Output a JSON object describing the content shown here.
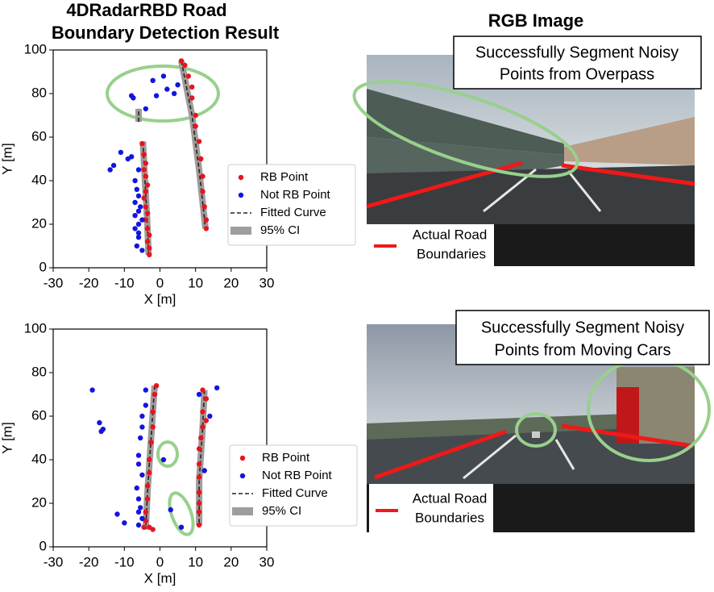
{
  "title": [
    "4DRadarRBD Road",
    "Boundary Detection Result"
  ],
  "image_title": "RGB Image",
  "chart_data": [
    {
      "type": "scatter",
      "xlabel": "X [m]",
      "ylabel": "Y [m]",
      "xlim": [
        -30,
        30
      ],
      "xticks": [
        -30,
        -20,
        -10,
        0,
        10,
        20,
        30
      ],
      "ylim": [
        0,
        100
      ],
      "yticks": [
        0,
        20,
        40,
        60,
        80,
        100
      ],
      "grid": false,
      "legend": "right",
      "series": [
        {
          "name": "RB Point",
          "color": "#e8141c",
          "style": "points",
          "x": [
            -5,
            -4.5,
            -4,
            -4.5,
            -4,
            -3.5,
            -4,
            -4.5,
            -4,
            -3.5,
            -4,
            -3.5,
            -3,
            -3.5,
            -3,
            -3,
            6,
            7,
            8,
            9,
            9,
            10,
            10,
            11,
            11.5,
            12,
            12,
            12.5,
            13,
            13
          ],
          "values": [
            57,
            52,
            48,
            45,
            42,
            38,
            35,
            32,
            28,
            25,
            22,
            18,
            15,
            12,
            9,
            6,
            95,
            93,
            88,
            83,
            78,
            70,
            65,
            58,
            50,
            42,
            35,
            28,
            22,
            18
          ]
        },
        {
          "name": "Not RB Point",
          "color": "#1414e0",
          "style": "points",
          "x": [
            -14,
            -13,
            -11,
            -9,
            -8,
            -8,
            -7.5,
            -2,
            -1,
            -4,
            2,
            4,
            1,
            5,
            -7,
            -6.5,
            -7,
            -6,
            -7,
            -6,
            -7,
            -6,
            -6.5,
            -5,
            -6,
            -6,
            -5.5,
            -5,
            -6
          ],
          "values": [
            45,
            47,
            53,
            50,
            51,
            79,
            78,
            86,
            79,
            73,
            82,
            80,
            88,
            84,
            40,
            36,
            30,
            26,
            24,
            20,
            18,
            14,
            10,
            8,
            45,
            33,
            28,
            22,
            16
          ]
        },
        {
          "name": "Fitted Curve",
          "color": "#222222",
          "style": "dashed",
          "x": [
            -4.8,
            -4.2,
            -3.6,
            -3.2,
            null,
            6,
            9,
            11,
            12.8,
            null,
            -6,
            -6
          ],
          "values": [
            58,
            40,
            22,
            6,
            null,
            95,
            70,
            45,
            18,
            null,
            67,
            73
          ]
        },
        {
          "name": "95% CI",
          "color": "#a09c9c",
          "style": "band",
          "x": [
            -4.8,
            -4.2,
            -3.6,
            -3.2,
            null,
            6,
            9,
            11,
            12.8,
            null,
            -6,
            -6
          ],
          "values": [
            58,
            40,
            22,
            6,
            null,
            95,
            70,
            45,
            18,
            null,
            67,
            73
          ]
        }
      ]
    },
    {
      "type": "scatter",
      "xlabel": "X [m]",
      "ylabel": "Y [m]",
      "xlim": [
        -30,
        30
      ],
      "xticks": [
        -30,
        -20,
        -10,
        0,
        10,
        20,
        30
      ],
      "ylim": [
        0,
        100
      ],
      "yticks": [
        0,
        20,
        40,
        60,
        80,
        100
      ],
      "grid": false,
      "legend": "right",
      "series": [
        {
          "name": "RB Point",
          "color": "#e8141c",
          "style": "points",
          "x": [
            -1,
            -1.5,
            -2,
            -2,
            -2.5,
            -3,
            -3,
            -3.5,
            -3.5,
            -4,
            -4,
            -4.5,
            -2,
            -3,
            12,
            13,
            12,
            13,
            12,
            11.5,
            11,
            11,
            11,
            11,
            11,
            11,
            11
          ],
          "values": [
            74,
            70,
            62,
            55,
            48,
            40,
            34,
            28,
            22,
            16,
            12,
            9,
            8,
            9,
            72,
            68,
            62,
            58,
            55,
            50,
            45,
            38,
            32,
            25,
            20,
            16,
            10
          ]
        },
        {
          "name": "Not RB Point",
          "color": "#1414e0",
          "style": "points",
          "x": [
            -19,
            -17,
            -16.5,
            -16,
            -12,
            -10,
            -6,
            -4,
            -4,
            -5,
            -5,
            -5.5,
            -6,
            -6,
            -5,
            -6.5,
            -6,
            -5.5,
            -5,
            -6,
            1,
            3,
            6,
            16,
            14,
            11,
            12.5
          ],
          "values": [
            72,
            57,
            53,
            54,
            15,
            11,
            16,
            72,
            65,
            60,
            55,
            50,
            42,
            38,
            33,
            27,
            22,
            18,
            13,
            10,
            40,
            17,
            9,
            73,
            60,
            70,
            35
          ]
        },
        {
          "name": "Fitted Curve",
          "color": "#222222",
          "style": "dashed",
          "x": [
            -1.5,
            -2.5,
            -3.5,
            -4,
            null,
            12.5,
            12,
            11,
            11
          ],
          "values": [
            74,
            50,
            25,
            8,
            null,
            72,
            55,
            30,
            10
          ]
        },
        {
          "name": "95% CI",
          "color": "#a09c9c",
          "style": "band",
          "x": [
            -1.5,
            -2.5,
            -3.5,
            -4,
            null,
            12.5,
            12,
            11,
            11
          ],
          "values": [
            74,
            50,
            25,
            8,
            null,
            72,
            55,
            30,
            10
          ]
        }
      ]
    }
  ],
  "images": [
    {
      "annotation": [
        "Successfully Segment Noisy",
        "Points from Overpass"
      ],
      "legend": [
        "Actual Road",
        "Boundaries"
      ]
    },
    {
      "annotation": [
        "Successfully Segment Noisy",
        "Points from Moving Cars"
      ],
      "legend": [
        "Actual Road",
        "Boundaries"
      ]
    }
  ]
}
